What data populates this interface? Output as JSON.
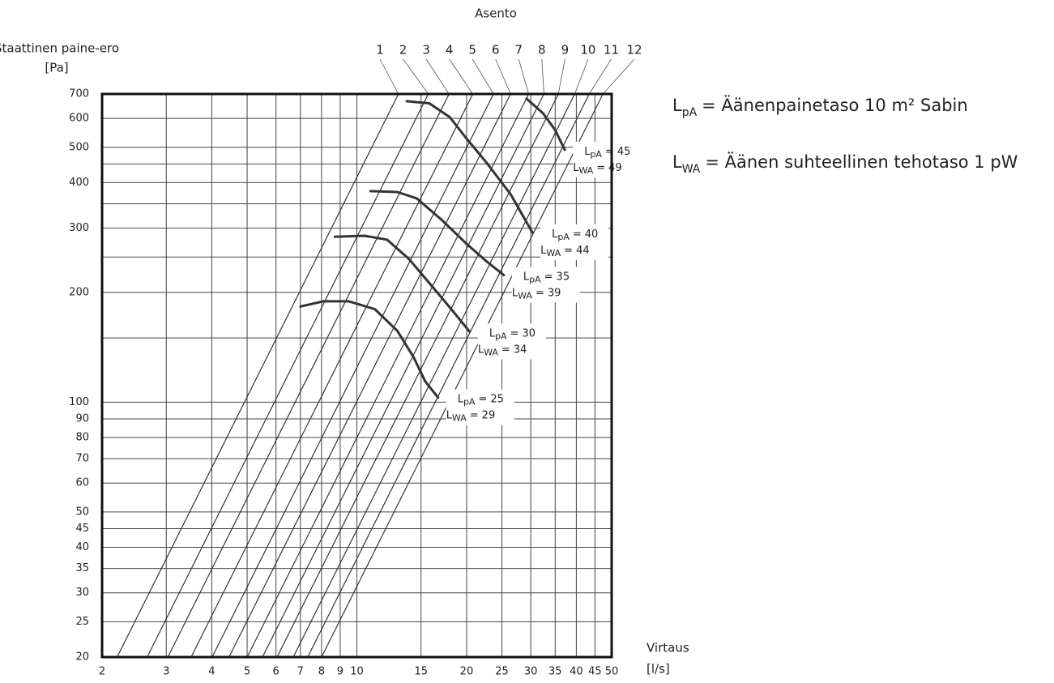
{
  "chart_data": {
    "type": "line",
    "series_label": "Asento",
    "y_label": [
      "Staattinen paine-ero",
      "[Pa]"
    ],
    "x_label": [
      "Virtaus",
      "[l/s]"
    ],
    "xscale": "log",
    "yscale": "log",
    "xlim": [
      2,
      50
    ],
    "ylim": [
      20,
      700
    ],
    "xticks": [
      2,
      3,
      4,
      5,
      6,
      7,
      8,
      9,
      10,
      15,
      20,
      25,
      30,
      35,
      40,
      45,
      50
    ],
    "yticks": [
      20,
      25,
      30,
      35,
      40,
      45,
      50,
      60,
      70,
      80,
      90,
      100,
      200,
      300,
      400,
      500,
      600,
      700
    ],
    "ygrid_extra": [
      150,
      250,
      350,
      450
    ],
    "grid": true,
    "series": [
      {
        "name": "1",
        "color": "#333333",
        "x": [
          2.2,
          13.0
        ],
        "values": [
          20,
          700
        ]
      },
      {
        "name": "2",
        "color": "#333333",
        "x": [
          2.66,
          15.7
        ],
        "values": [
          20,
          700
        ]
      },
      {
        "name": "3",
        "color": "#333333",
        "x": [
          3.03,
          17.9
        ],
        "values": [
          20,
          700
        ]
      },
      {
        "name": "4",
        "color": "#333333",
        "x": [
          3.51,
          20.8
        ],
        "values": [
          20,
          700
        ]
      },
      {
        "name": "5",
        "color": "#333333",
        "x": [
          4.01,
          23.7
        ],
        "values": [
          20,
          700
        ]
      },
      {
        "name": "6",
        "color": "#333333",
        "x": [
          4.46,
          26.4
        ],
        "values": [
          20,
          700
        ]
      },
      {
        "name": "7",
        "color": "#333333",
        "x": [
          5.0,
          29.6
        ],
        "values": [
          20,
          700
        ]
      },
      {
        "name": "8",
        "color": "#333333",
        "x": [
          5.51,
          32.6
        ],
        "values": [
          20,
          700
        ]
      },
      {
        "name": "9",
        "color": "#333333",
        "x": [
          6.04,
          35.7
        ],
        "values": [
          20,
          700
        ]
      },
      {
        "name": "10",
        "color": "#333333",
        "x": [
          6.69,
          39.6
        ],
        "values": [
          20,
          700
        ]
      },
      {
        "name": "11",
        "color": "#333333",
        "x": [
          7.33,
          43.4
        ],
        "values": [
          20,
          700
        ]
      },
      {
        "name": "12",
        "color": "#333333",
        "x": [
          8.0,
          47.3
        ],
        "values": [
          20,
          700
        ]
      }
    ],
    "lpa_symbol": {
      "main": "L",
      "sub": "pA"
    },
    "lwa_symbol": {
      "main": "L",
      "sub": "WA"
    },
    "equals": "=",
    "curves": [
      {
        "lpa": 25,
        "lwa": 29,
        "color": "#333333",
        "x": [
          7.0,
          8.1,
          9.5,
          11.2,
          12.9,
          14.3,
          15.4,
          16.7
        ],
        "values": [
          183,
          189,
          189,
          180,
          157,
          133,
          114,
          103
        ]
      },
      {
        "lpa": 30,
        "lwa": 34,
        "color": "#333333",
        "x": [
          8.7,
          10.5,
          12.1,
          13.9,
          16.2,
          18.4,
          20.4
        ],
        "values": [
          284,
          286,
          279,
          247,
          206,
          177,
          156
        ]
      },
      {
        "lpa": 35,
        "lwa": 39,
        "color": "#333333",
        "x": [
          10.9,
          12.9,
          14.6,
          17.1,
          19.9,
          22.6,
          25.3
        ],
        "values": [
          379,
          377,
          362,
          316,
          273,
          244,
          223
        ]
      },
      {
        "lpa": 40,
        "lwa": 44,
        "color": "#333333",
        "x": [
          13.7,
          15.8,
          18.0,
          19.9,
          22.6,
          26.4,
          30.3
        ],
        "values": [
          669,
          660,
          604,
          531,
          456,
          372,
          292
        ]
      },
      {
        "lpa": 45,
        "lwa": 49,
        "color": "#333333",
        "x": [
          29.2,
          32.4,
          34.9,
          37.2
        ],
        "values": [
          680,
          620,
          560,
          492
        ]
      }
    ],
    "legend": [
      {
        "main": "L",
        "sub": "pA",
        "text": "= Äänenpainetaso 10 m² Sabin"
      },
      {
        "main": "L",
        "sub": "WA",
        "text": "= Äänen suhteellinen tehotaso 1 pW"
      }
    ]
  }
}
